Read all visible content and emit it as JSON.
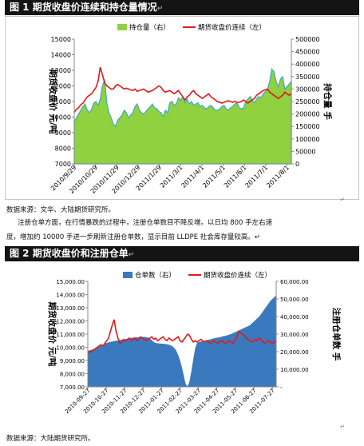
{
  "figure1": {
    "title": "图 1  期货收盘价连续和持仓量情况",
    "title_mark": "↵",
    "legend": [
      "持仓量（右）",
      "期货收盘价连续（左）"
    ],
    "ylabel_left": "期货收盘价 元/吨",
    "ylabel_right": "持仓量 手",
    "source": "数据来源：文华、大陆期货研究所。"
  },
  "paragraph": {
    "line1": "注册仓单方面，在行情暴跌的过程中，注册仓单数目不降反增。以日均 800 手左右速",
    "line2": "度，增加约 10000 手进一步刷新注册仓单数，显示目前 LLDPE 社会库存量较高。↵"
  },
  "figure2": {
    "title": "图 2  期货收盘价和注册仓单",
    "title_mark": "↵",
    "legend": [
      "仓单数（右）",
      "期货收盘价连续（左）"
    ],
    "ylabel_left": "期货收盘价 元/吨",
    "ylabel_right": "注册仓单数 手",
    "source": "数据来源：大陆期货研究所。"
  },
  "corner_marks": [
    "↵",
    "↵"
  ],
  "colors": {
    "fill1": "#8fd13f",
    "fill1_stroke": "#3fa8c8",
    "fill2": "#3a79bd",
    "line": "#e01a1a"
  },
  "chart_data": [
    {
      "type": "area",
      "title": "",
      "x_ticks": [
        "2010/9/29",
        "2010/10/29",
        "2010/11/29",
        "2010/12/29",
        "2011/1/29",
        "2011/3/1",
        "2011/4/1",
        "2011/5/1",
        "2011/6/1",
        "2011/7/1",
        "2011/8/1"
      ],
      "x": [
        0,
        1,
        2,
        3,
        4,
        5,
        6,
        7,
        8,
        9,
        10,
        11,
        12,
        13,
        14,
        15,
        16,
        17,
        18,
        19,
        20,
        21,
        22,
        23,
        24,
        25,
        26,
        27,
        28,
        29,
        30,
        31,
        32,
        33,
        34,
        35,
        36,
        37,
        38,
        39,
        40,
        41,
        42,
        43,
        44,
        45,
        46,
        47,
        48,
        49,
        50,
        51,
        52,
        53,
        54,
        55,
        56,
        57,
        58,
        59,
        60,
        61,
        62,
        63,
        64,
        65,
        66,
        67,
        68,
        69,
        70,
        71,
        72,
        73,
        74,
        75,
        76,
        77,
        78,
        79,
        80,
        81,
        82,
        83,
        84,
        85,
        86,
        87,
        88,
        89,
        90,
        91,
        92,
        93,
        94,
        95,
        96,
        97,
        98,
        99,
        100
      ],
      "series": [
        {
          "name": "持仓量（右）",
          "axis": "right",
          "type": "area",
          "values": [
            170000,
            185000,
            200000,
            215000,
            230000,
            240000,
            215000,
            205000,
            220000,
            245000,
            250000,
            235000,
            260000,
            315000,
            335000,
            245000,
            205000,
            185000,
            160000,
            150000,
            175000,
            185000,
            195000,
            215000,
            205000,
            185000,
            195000,
            205000,
            230000,
            240000,
            215000,
            205000,
            200000,
            210000,
            220000,
            230000,
            240000,
            225000,
            220000,
            210000,
            205000,
            190000,
            215000,
            205000,
            245000,
            250000,
            235000,
            240000,
            265000,
            255000,
            270000,
            245000,
            260000,
            240000,
            250000,
            235000,
            240000,
            245000,
            230000,
            235000,
            225000,
            220000,
            230000,
            235000,
            225000,
            215000,
            215000,
            220000,
            230000,
            235000,
            220000,
            215000,
            225000,
            230000,
            240000,
            245000,
            225000,
            220000,
            225000,
            250000,
            260000,
            270000,
            255000,
            245000,
            260000,
            270000,
            265000,
            280000,
            290000,
            300000,
            330000,
            380000,
            370000,
            330000,
            310000,
            340000,
            350000,
            300000,
            310000,
            320000,
            330000
          ]
        },
        {
          "name": "期货收盘价连续（左）",
          "axis": "left",
          "type": "line",
          "values": [
            10300,
            10500,
            10600,
            10800,
            10900,
            11100,
            11300,
            11400,
            11500,
            11700,
            11900,
            12300,
            13200,
            12700,
            12200,
            12000,
            11900,
            11800,
            11800,
            12000,
            12100,
            12000,
            11900,
            11800,
            11850,
            11800,
            11750,
            11700,
            11800,
            11650,
            11700,
            11750,
            11800,
            11700,
            11600,
            11650,
            11700,
            11800,
            11900,
            12000,
            11900,
            11700,
            11600,
            11650,
            11700,
            11600,
            11500,
            11600,
            11700,
            11500,
            11300,
            11100,
            11300,
            11400,
            11600,
            11700,
            11500,
            11400,
            11300,
            11200,
            11300,
            11400,
            11500,
            11300,
            11200,
            11100,
            11000,
            10950,
            10900,
            10950,
            11000,
            11050,
            11000,
            10950,
            11000,
            10950,
            10950,
            11000,
            11100,
            11000,
            10900,
            11000,
            11100,
            11200,
            11400,
            11500,
            11600,
            11700,
            11750,
            11800,
            11600,
            11500,
            11400,
            11300,
            11200,
            11300,
            11400,
            11600,
            11500,
            11400,
            11500
          ]
        }
      ],
      "y_left": {
        "min": 7000,
        "max": 15000,
        "ticks": [
          7000,
          8000,
          9000,
          10000,
          11000,
          12000,
          13000,
          14000,
          15000
        ]
      },
      "y_right": {
        "min": 0,
        "max": 500000,
        "ticks": [
          0,
          50000,
          100000,
          150000,
          200000,
          250000,
          300000,
          350000,
          400000,
          450000,
          500000
        ]
      },
      "legend_position": "top"
    },
    {
      "type": "area",
      "title": "",
      "x_ticks": [
        "2010-09-27",
        "2010-10-27",
        "2010-11-27",
        "2010-12-27",
        "2011-01-27",
        "2011-02-27",
        "2011-03-27",
        "2011-04-27",
        "2011-05-27",
        "2011-06-27",
        "2011-07-27"
      ],
      "x": [
        0,
        1,
        2,
        3,
        4,
        5,
        6,
        7,
        8,
        9,
        10,
        11,
        12,
        13,
        14,
        15,
        16,
        17,
        18,
        19,
        20,
        21,
        22,
        23,
        24,
        25,
        26,
        27,
        28,
        29,
        30,
        31,
        32,
        33,
        34,
        35,
        36,
        37,
        38,
        39,
        40,
        41,
        42,
        43,
        44,
        45,
        46,
        47,
        48,
        49,
        50,
        51,
        52,
        53,
        54,
        55,
        56,
        57,
        58,
        59,
        60,
        61,
        62,
        63,
        64,
        65,
        66,
        67,
        68,
        69,
        70,
        71,
        72,
        73,
        74,
        75,
        76,
        77,
        78,
        79,
        80,
        81,
        82,
        83,
        84,
        85,
        86,
        87,
        88,
        89,
        90,
        91,
        92,
        93,
        94,
        95,
        96,
        97,
        98,
        99,
        100
      ],
      "series": [
        {
          "name": "仓单数（右）",
          "axis": "right",
          "type": "area",
          "values": [
            20500,
            20800,
            21000,
            21500,
            22000,
            22500,
            23000,
            23500,
            24000,
            24500,
            25000,
            25300,
            25600,
            25800,
            26000,
            26200,
            26400,
            26600,
            26800,
            27000,
            27200,
            27400,
            27600,
            27800,
            28000,
            28100,
            28200,
            28300,
            28300,
            28400,
            28400,
            28300,
            28000,
            27500,
            26500,
            25500,
            25000,
            24800,
            24700,
            24600,
            24500,
            24400,
            24200,
            24000,
            23600,
            23000,
            22000,
            20500,
            18000,
            15000,
            11000,
            6000,
            1500,
            300,
            3000,
            9000,
            16000,
            22000,
            25000,
            25500,
            25800,
            26000,
            26200,
            26500,
            26800,
            27000,
            27300,
            27600,
            27800,
            28000,
            28200,
            28500,
            28800,
            29000,
            29300,
            29700,
            30000,
            30500,
            31000,
            31500,
            32000,
            32500,
            33000,
            33500,
            34000,
            34500,
            35000,
            36000,
            37000,
            38000,
            39000,
            40000,
            41500,
            43000,
            44500,
            46000,
            47500,
            49000,
            50000,
            51000,
            52000
          ]
        },
        {
          "name": "期货收盘价连续（左）",
          "axis": "left",
          "type": "line",
          "values": [
            9600,
            9650,
            9700,
            9800,
            9900,
            10000,
            10100,
            10200,
            10100,
            10300,
            10500,
            10700,
            11200,
            11700,
            12100,
            11200,
            10700,
            10300,
            10400,
            10600,
            10500,
            10600,
            10700,
            10500,
            10600,
            10700,
            10500,
            10600,
            10800,
            10700,
            10600,
            10500,
            10600,
            10700,
            10800,
            10600,
            10700,
            10500,
            10600,
            10700,
            10800,
            10600,
            10500,
            10700,
            10600,
            10500,
            10600,
            10700,
            10800,
            10500,
            10400,
            10600,
            10800,
            11000,
            10900,
            10600,
            10400,
            10500,
            10400,
            10500,
            10600,
            10500,
            10400,
            10500,
            10400,
            10300,
            10400,
            10500,
            10400,
            10300,
            10400,
            10500,
            10400,
            10300,
            10400,
            10500,
            10400,
            10300,
            10500,
            10700,
            11200,
            11100,
            11000,
            10900,
            10700,
            10600,
            10500,
            10400,
            10500,
            10600,
            10500,
            10700,
            10600,
            10400,
            10300,
            10400,
            10500,
            10400,
            10300,
            10400,
            10500
          ]
        }
      ],
      "y_left": {
        "min": 7000,
        "max": 15000,
        "ticks": [
          7000,
          8000,
          9000,
          10000,
          11000,
          12000,
          13000,
          14000,
          15000
        ],
        "tick_labels": [
          "7,000.00",
          "8,000.00",
          "9,000.00",
          "10,000.00",
          "11,000.00",
          "12,000.00",
          "13,000.00",
          "14,000.00",
          "15,000.00"
        ]
      },
      "y_right": {
        "min": 0,
        "max": 60000,
        "ticks": [
          0,
          10000,
          20000,
          30000,
          40000,
          50000,
          60000
        ],
        "tick_labels": [
          "-",
          "10,000.00",
          "20,000.00",
          "30,000.00",
          "40,000.00",
          "50,000.00",
          "60,000.00"
        ]
      },
      "legend_position": "top"
    }
  ]
}
